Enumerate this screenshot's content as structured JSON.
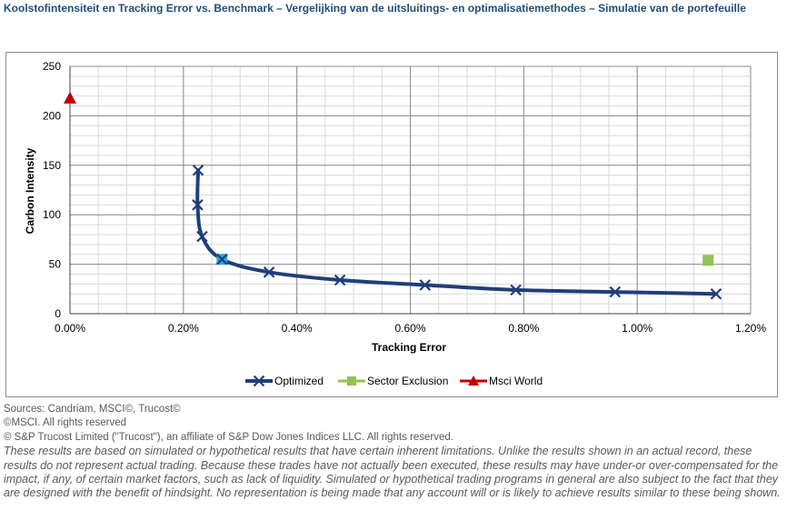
{
  "title": "Koolstofintensiteit en Tracking Error vs. Benchmark – Vergelijking van de uitsluitings- en optimalisatiemethodes – Simulatie van de portefeuille",
  "chart_data": {
    "type": "scatter",
    "title": "",
    "xlabel": "Tracking Error",
    "ylabel": "Carbon Intensity",
    "xlim": [
      0,
      1.2
    ],
    "ylim": [
      0,
      250
    ],
    "x_ticks": [
      "0.00%",
      "0.20%",
      "0.40%",
      "0.60%",
      "0.80%",
      "1.00%",
      "1.20%"
    ],
    "y_ticks": [
      "0",
      "50",
      "100",
      "150",
      "200",
      "250"
    ],
    "x_tick_values": [
      0,
      0.2,
      0.4,
      0.6,
      0.8,
      1.0,
      1.2
    ],
    "y_tick_values": [
      0,
      50,
      100,
      150,
      200,
      250
    ],
    "grid": true,
    "legend": "bottom",
    "series": [
      {
        "name": "Optimized",
        "kind": "line-x-markers",
        "color": "#1f3f7a",
        "x": [
          0.226,
          0.225,
          0.233,
          0.268,
          0.351,
          0.476,
          0.626,
          0.786,
          0.961,
          1.139
        ],
        "y": [
          145,
          110,
          78,
          55,
          42,
          34,
          29,
          24,
          22,
          20
        ],
        "highlight_index": 3,
        "highlight_color": "#29a8e0"
      },
      {
        "name": "Sector Exclusion",
        "kind": "square",
        "color": "#92c353",
        "x": [
          1.125
        ],
        "y": [
          54
        ]
      },
      {
        "name": "Msci World",
        "kind": "triangle",
        "color": "#c00000",
        "x": [
          0.0
        ],
        "y": [
          218
        ]
      }
    ]
  },
  "footer": {
    "sources": "Sources: Candriam, MSCI©, Trucost©",
    "msci": "©MSCI. All rights reserved",
    "sp": "© S&P Trucost Limited (\"Trucost\"), an affiliate of S&P Dow Jones Indices LLC. All rights reserved.",
    "disclaimer": "These results are based on simulated or hypothetical results that have certain inherent limitations. Unlike the results shown in an actual record, these results do not represent actual trading. Because these trades have not actually been executed, these results may have under-or over-compensated for the impact, if any, of certain market factors, such as lack of liquidity. Simulated or hypothetical trading programs in general are also subject to the fact that they are designed with the benefit of hindsight. No representation is being made that any account will or is likely to achieve results similar to these being shown."
  }
}
